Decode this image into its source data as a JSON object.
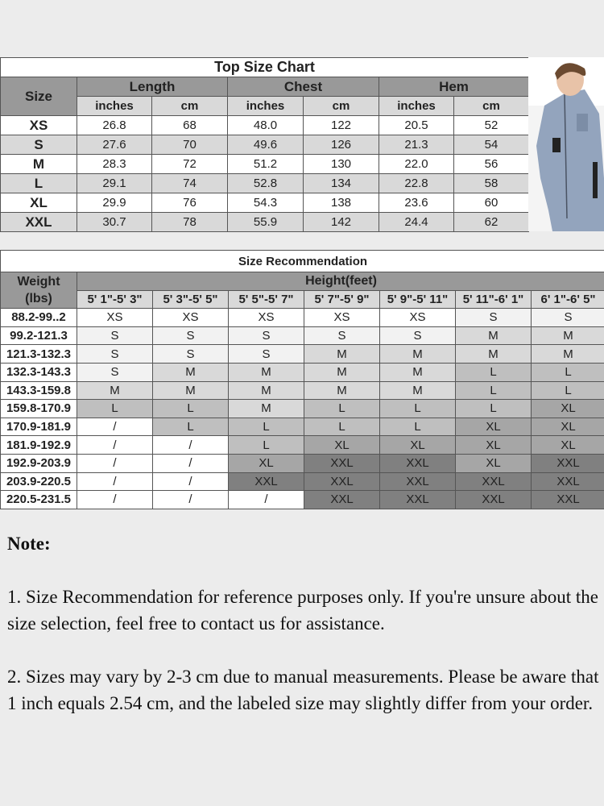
{
  "top_chart": {
    "title": "Top Size Chart",
    "size_label": "Size",
    "groups": [
      "Length",
      "Chest",
      "Hem"
    ],
    "units": [
      "inches",
      "cm",
      "inches",
      "cm",
      "inches",
      "cm"
    ],
    "rows": [
      [
        "XS",
        "26.8",
        "68",
        "48.0",
        "122",
        "20.5",
        "52"
      ],
      [
        "S",
        "27.6",
        "70",
        "49.6",
        "126",
        "21.3",
        "54"
      ],
      [
        "M",
        "28.3",
        "72",
        "51.2",
        "130",
        "22.0",
        "56"
      ],
      [
        "L",
        "29.1",
        "74",
        "52.8",
        "134",
        "22.8",
        "58"
      ],
      [
        "XL",
        "29.9",
        "76",
        "54.3",
        "138",
        "23.6",
        "60"
      ],
      [
        "XXL",
        "30.7",
        "78",
        "55.9",
        "142",
        "24.4",
        "62"
      ]
    ]
  },
  "recommendation": {
    "title": "Size Recommendation",
    "weight_label": "Weight\n(lbs)",
    "height_label": "Height(feet)",
    "heights": [
      "5' 1\"-5' 3\"",
      "5' 3\"-5' 5\"",
      "5' 5\"-5' 7\"",
      "5' 7\"-5' 9\"",
      "5' 9\"-5' 11\"",
      "5' 11\"-6' 1\"",
      "6' 1\"-6' 5\""
    ],
    "rows": [
      [
        "88.2-99..2",
        "XS",
        "XS",
        "XS",
        "XS",
        "XS",
        "S",
        "S"
      ],
      [
        "99.2-121.3",
        "S",
        "S",
        "S",
        "S",
        "S",
        "M",
        "M"
      ],
      [
        "121.3-132.3",
        "S",
        "S",
        "S",
        "M",
        "M",
        "M",
        "M"
      ],
      [
        "132.3-143.3",
        "S",
        "M",
        "M",
        "M",
        "M",
        "L",
        "L"
      ],
      [
        "143.3-159.8",
        "M",
        "M",
        "M",
        "M",
        "M",
        "L",
        "L"
      ],
      [
        "159.8-170.9",
        "L",
        "L",
        "M",
        "L",
        "L",
        "L",
        "XL"
      ],
      [
        "170.9-181.9",
        "/",
        "L",
        "L",
        "L",
        "L",
        "XL",
        "XL"
      ],
      [
        "181.9-192.9",
        "/",
        "/",
        "L",
        "XL",
        "XL",
        "XL",
        "XL"
      ],
      [
        "192.9-203.9",
        "/",
        "/",
        "XL",
        "XXL",
        "XXL",
        "XL",
        "XXL"
      ],
      [
        "203.9-220.5",
        "/",
        "/",
        "XXL",
        "XXL",
        "XXL",
        "XXL",
        "XXL"
      ],
      [
        "220.5-231.5",
        "/",
        "/",
        "/",
        "XXL",
        "XXL",
        "XXL",
        "XXL"
      ]
    ],
    "size_colors": {
      "XS": "#ffffff",
      "S": "#f2f2f2",
      "M": "#d9d9d9",
      "L": "#bfbfbf",
      "XL": "#a6a6a6",
      "XXL": "#808080",
      "/": "#ffffff"
    }
  },
  "notes": {
    "heading": "Note:",
    "items": [
      "1. Size Recommendation for reference purposes only. If you're unsure about the size selection, feel free to contact us for assistance.",
      "2. Sizes may vary by 2-3 cm due to manual measurements. Please be aware that 1 inch equals 2.54 cm, and the labeled size may slightly differ from your order."
    ]
  }
}
